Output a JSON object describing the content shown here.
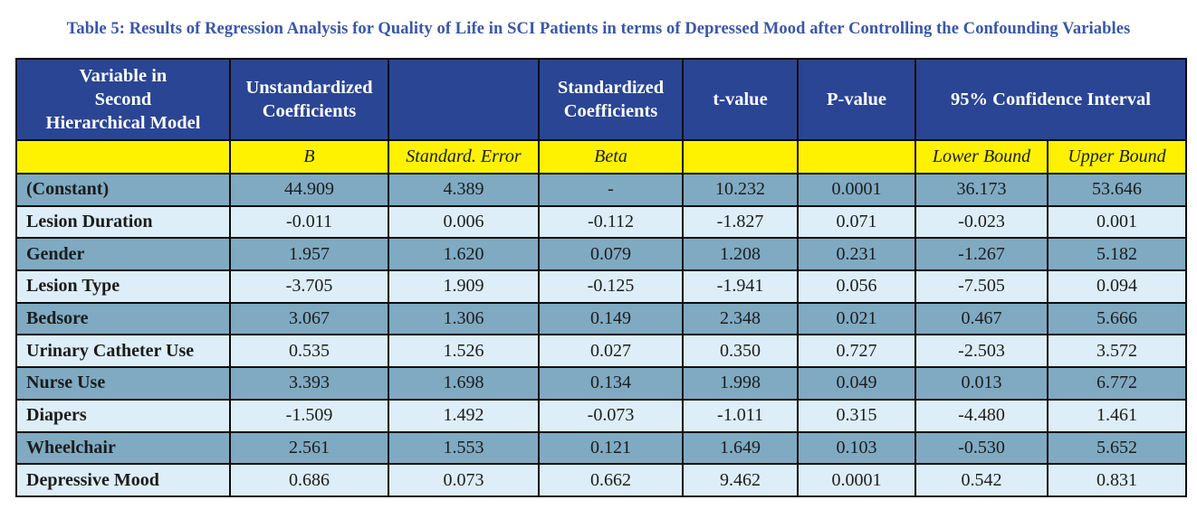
{
  "title": "Table 5: Results of Regression Analysis for Quality of Life in SCI Patients in terms of Depressed Mood after Controlling the Confounding Variables",
  "header": {
    "variable": [
      "Variable in",
      "Second",
      "Hierarchical Model"
    ],
    "unstandardized": [
      "Unstandardized",
      "Coefficients"
    ],
    "blank": "",
    "standardized": [
      "Standardized",
      "Coefficients"
    ],
    "t_value": "t-value",
    "p_value": "P-value",
    "ci": "95% Confidence Interval"
  },
  "subheader": {
    "variable": "",
    "b": "B",
    "std_error": "Standard. Error",
    "beta": "Beta",
    "t": "",
    "p": "",
    "lower": "Lower Bound",
    "upper": "Upper Bound"
  },
  "rows": [
    {
      "label": "(Constant)",
      "b": "44.909",
      "se": "4.389",
      "beta": "-",
      "t": "10.232",
      "p": "0.0001",
      "lower": "36.173",
      "upper": "53.646"
    },
    {
      "label": "Lesion Duration",
      "b": "-0.011",
      "se": "0.006",
      "beta": "-0.112",
      "t": "-1.827",
      "p": "0.071",
      "lower": "-0.023",
      "upper": "0.001"
    },
    {
      "label": "Gender",
      "b": "1.957",
      "se": "1.620",
      "beta": "0.079",
      "t": "1.208",
      "p": "0.231",
      "lower": "-1.267",
      "upper": "5.182"
    },
    {
      "label": "Lesion Type",
      "b": "-3.705",
      "se": "1.909",
      "beta": "-0.125",
      "t": "-1.941",
      "p": "0.056",
      "lower": "-7.505",
      "upper": "0.094"
    },
    {
      "label": "Bedsore",
      "b": "3.067",
      "se": "1.306",
      "beta": "0.149",
      "t": "2.348",
      "p": "0.021",
      "lower": "0.467",
      "upper": "5.666"
    },
    {
      "label": "Urinary Catheter Use",
      "b": "0.535",
      "se": "1.526",
      "beta": "0.027",
      "t": "0.350",
      "p": "0.727",
      "lower": "-2.503",
      "upper": "3.572"
    },
    {
      "label": "Nurse Use",
      "b": "3.393",
      "se": "1.698",
      "beta": "0.134",
      "t": "1.998",
      "p": "0.049",
      "lower": "0.013",
      "upper": "6.772"
    },
    {
      "label": "Diapers",
      "b": "-1.509",
      "se": "1.492",
      "beta": "-0.073",
      "t": "-1.011",
      "p": "0.315",
      "lower": "-4.480",
      "upper": "1.461"
    },
    {
      "label": "Wheelchair",
      "b": "2.561",
      "se": "1.553",
      "beta": "0.121",
      "t": "1.649",
      "p": "0.103",
      "lower": "-0.530",
      "upper": "5.652"
    },
    {
      "label": "Depressive Mood",
      "b": "0.686",
      "se": "0.073",
      "beta": "0.662",
      "t": "9.462",
      "p": "0.0001",
      "lower": "0.542",
      "upper": "0.831"
    }
  ],
  "colors": {
    "title": "#3a57a6",
    "header_bg": "#2a4593",
    "subheader_bg": "#fff200",
    "row_dark": "#7faac2",
    "row_light": "#ddeef8"
  }
}
